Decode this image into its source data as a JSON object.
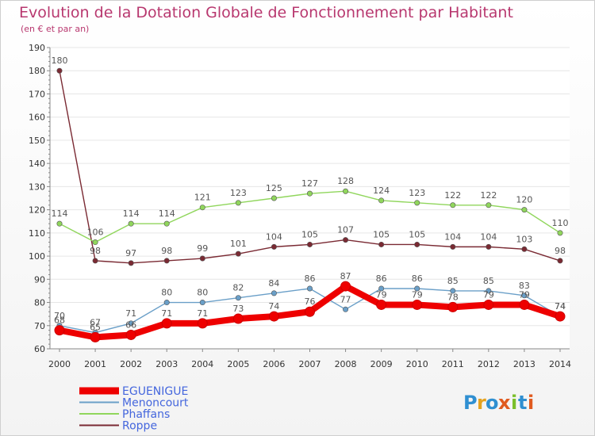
{
  "title": "Evolution de la Dotation Globale de Fonctionnement par Habitant",
  "subtitle": "(en € et par an)",
  "brand": {
    "text": "Proxiti",
    "colors": [
      "#2f8fd1",
      "#e5a21f",
      "#2f8fd1",
      "#e05a1f",
      "#7bbf2a",
      "#2f8fd1",
      "#e05a1f"
    ]
  },
  "chart_data": {
    "type": "line",
    "title": "Evolution de la Dotation Globale de Fonctionnement par Habitant",
    "subtitle": "(en € et par an)",
    "x": [
      2000,
      2001,
      2002,
      2003,
      2004,
      2005,
      2006,
      2007,
      2008,
      2009,
      2010,
      2011,
      2012,
      2013,
      2014
    ],
    "x_tick_labels": [
      "2000",
      "2001",
      "2002",
      "2003",
      "2004",
      "2005",
      "2006",
      "2007",
      "2008",
      "2009",
      "2010",
      "2011",
      "2012",
      "2013",
      "2014"
    ],
    "ylim": [
      60,
      190
    ],
    "y_ticks": [
      60,
      70,
      80,
      90,
      100,
      110,
      120,
      130,
      140,
      150,
      160,
      170,
      180,
      190
    ],
    "grid": "horizontal",
    "legend_position": "bottom-left",
    "series": [
      {
        "name": "Roppe",
        "color": "#7a2a33",
        "values": [
          180,
          98,
          97,
          98,
          99,
          101,
          104,
          105,
          107,
          105,
          105,
          104,
          104,
          103,
          98
        ],
        "labels": [
          "180",
          "98",
          "97",
          "98",
          "99",
          "101",
          "104",
          "105",
          "107",
          "105",
          "105",
          "104",
          "104",
          "103",
          "98"
        ]
      },
      {
        "name": "Phaffans",
        "color": "#90d65c",
        "values": [
          114,
          106,
          114,
          114,
          121,
          123,
          125,
          127,
          128,
          124,
          123,
          122,
          122,
          120,
          110
        ],
        "labels": [
          "114",
          "106",
          "114",
          "114",
          "121",
          "123",
          "125",
          "127",
          "128",
          "124",
          "123",
          "122",
          "122",
          "120",
          "110"
        ]
      },
      {
        "name": "Menoncourt",
        "color": "#6a9fc8",
        "values": [
          70,
          67,
          71,
          80,
          80,
          82,
          84,
          86,
          77,
          86,
          86,
          85,
          85,
          83,
          74
        ],
        "labels": [
          "70",
          "67",
          "71",
          "80",
          "80",
          "82",
          "84",
          "86",
          "77",
          "86",
          "86",
          "85",
          "85",
          "83",
          "74"
        ]
      },
      {
        "name": "EGUENIGUE",
        "color": "#ee0000",
        "values": [
          68,
          65,
          66,
          71,
          71,
          73,
          74,
          76,
          87,
          79,
          79,
          78,
          79,
          79,
          74
        ],
        "labels": [
          "68",
          "65",
          "66",
          "71",
          "71",
          "73",
          "74",
          "76",
          "87",
          "79",
          "79",
          "78",
          "79",
          "79",
          "74"
        ]
      }
    ],
    "legend": [
      {
        "name": "EGUENIGUE",
        "color": "#ee0000"
      },
      {
        "name": "Menoncourt",
        "color": "#6a9fc8"
      },
      {
        "name": "Phaffans",
        "color": "#90d65c"
      },
      {
        "name": "Roppe",
        "color": "#7a2a33"
      }
    ]
  }
}
